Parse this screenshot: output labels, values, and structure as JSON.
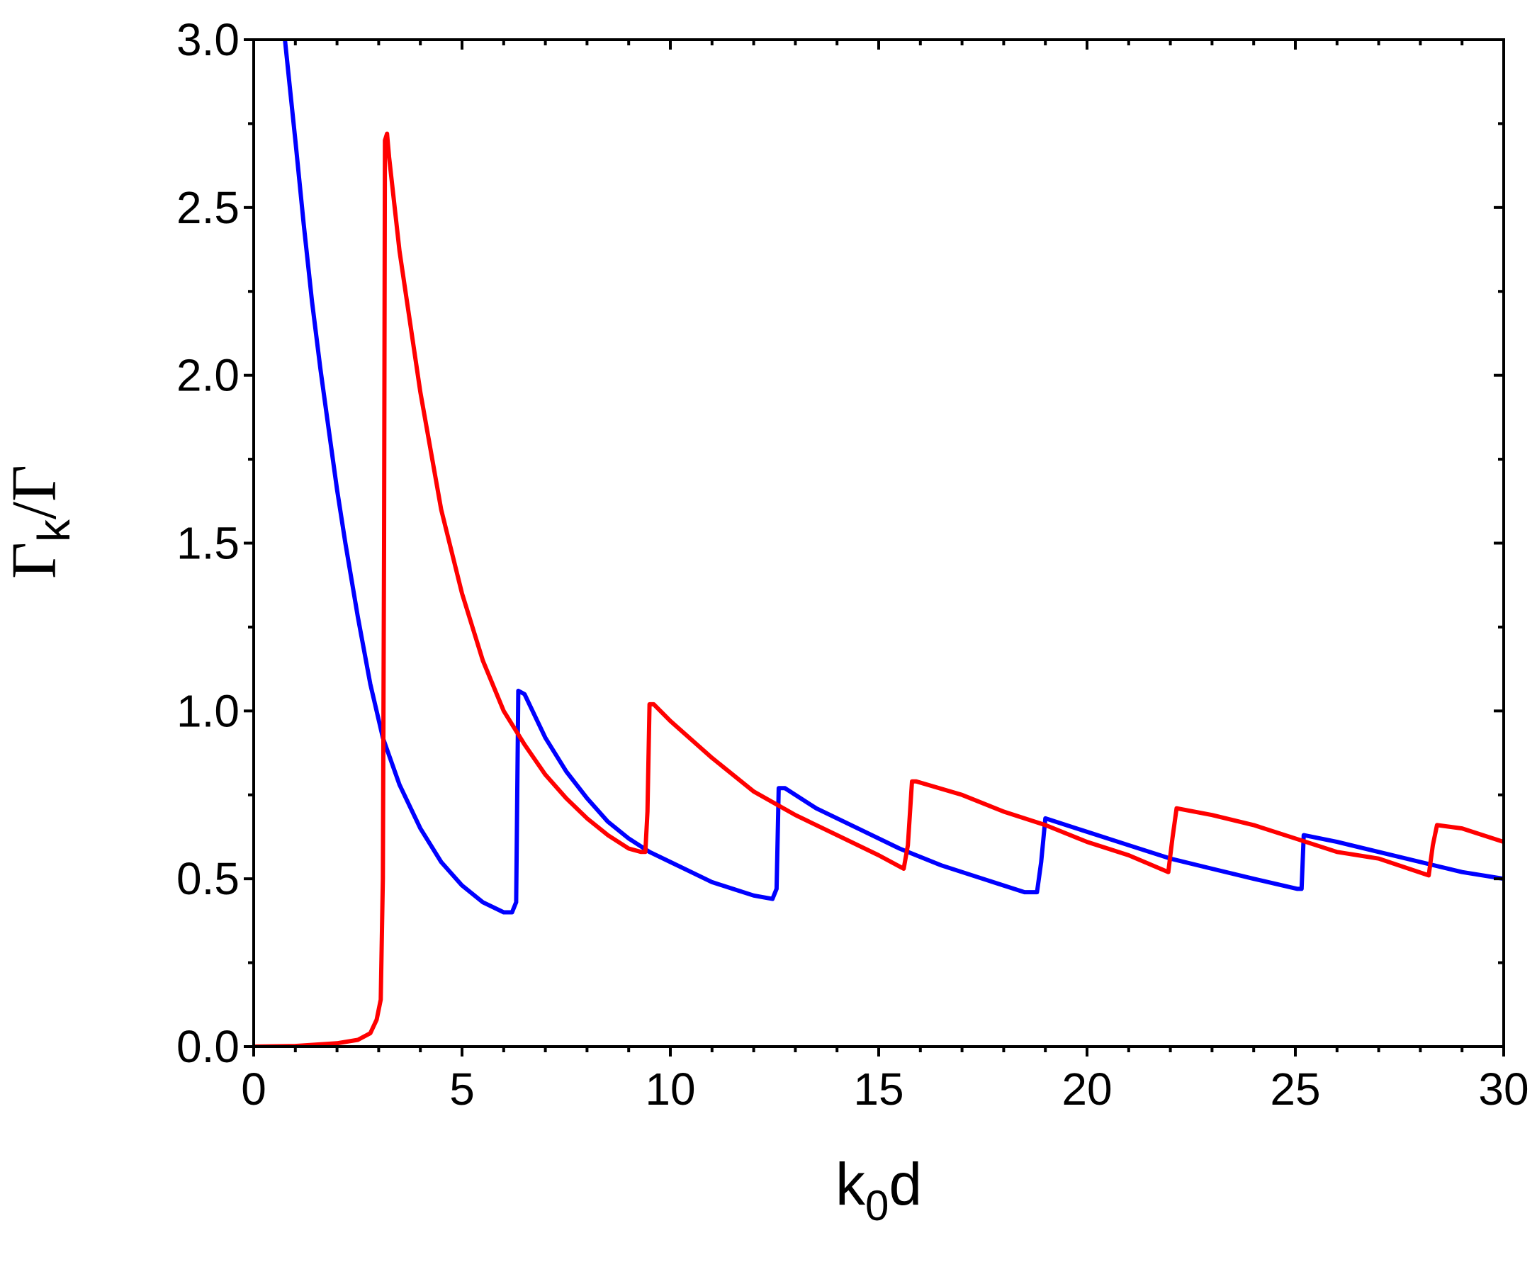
{
  "chart_data": {
    "type": "line",
    "xlabel": {
      "base": "k",
      "sub": "0",
      "rest": "d"
    },
    "ylabel": {
      "gamma": "Γ",
      "sub": "k",
      "rest": "/Γ"
    },
    "xlim": [
      0,
      30
    ],
    "ylim": [
      0,
      3.0
    ],
    "xticks": [
      "0",
      "5",
      "10",
      "15",
      "20",
      "25",
      "30"
    ],
    "yticks": [
      "0.0",
      "0.5",
      "1.0",
      "1.5",
      "2.0",
      "2.5",
      "3.0"
    ],
    "grid": false,
    "legend": "none",
    "series": [
      {
        "color": "#0000ff",
        "x": [
          0.75,
          0.9,
          1.0,
          1.2,
          1.4,
          1.6,
          1.8,
          2.0,
          2.2,
          2.5,
          2.8,
          3.1,
          3.5,
          4.0,
          4.5,
          5.0,
          5.5,
          6.0,
          6.2,
          6.3,
          6.35,
          6.5,
          7.0,
          7.5,
          8.0,
          8.5,
          9.0,
          9.5,
          10.0,
          10.5,
          11.0,
          11.5,
          12.0,
          12.45,
          12.55,
          12.6,
          12.75,
          13.5,
          14.5,
          15.5,
          16.5,
          17.5,
          18.5,
          18.8,
          18.9,
          19.0,
          20.0,
          21.0,
          22.0,
          23.0,
          24.0,
          25.05,
          25.15,
          25.2,
          26.0,
          27.0,
          28.0,
          29.0,
          30.0
        ],
        "y": [
          3.0,
          2.82,
          2.7,
          2.45,
          2.22,
          2.02,
          1.84,
          1.66,
          1.5,
          1.28,
          1.08,
          0.92,
          0.78,
          0.65,
          0.55,
          0.48,
          0.43,
          0.4,
          0.4,
          0.43,
          1.06,
          1.05,
          0.92,
          0.82,
          0.74,
          0.67,
          0.62,
          0.58,
          0.55,
          0.52,
          0.49,
          0.47,
          0.45,
          0.44,
          0.47,
          0.77,
          0.77,
          0.71,
          0.65,
          0.59,
          0.54,
          0.5,
          0.46,
          0.46,
          0.55,
          0.68,
          0.64,
          0.6,
          0.56,
          0.53,
          0.5,
          0.47,
          0.47,
          0.63,
          0.61,
          0.58,
          0.55,
          0.52,
          0.5
        ]
      },
      {
        "color": "#ff0000",
        "x": [
          0.0,
          1.0,
          2.0,
          2.5,
          2.8,
          2.95,
          3.05,
          3.1,
          3.13,
          3.15,
          3.2,
          3.25,
          3.5,
          4.0,
          4.5,
          5.0,
          5.5,
          6.0,
          6.5,
          7.0,
          7.5,
          8.0,
          8.5,
          9.0,
          9.3,
          9.4,
          9.45,
          9.5,
          9.6,
          10.0,
          11.0,
          12.0,
          13.0,
          14.0,
          15.0,
          15.6,
          15.7,
          15.8,
          15.9,
          17.0,
          18.0,
          19.0,
          20.0,
          21.0,
          21.95,
          22.05,
          22.15,
          23.0,
          24.0,
          25.0,
          26.0,
          27.0,
          28.2,
          28.3,
          28.4,
          29.0,
          30.0
        ],
        "y": [
          0.0,
          0.002,
          0.01,
          0.02,
          0.04,
          0.08,
          0.14,
          0.5,
          1.5,
          2.7,
          2.72,
          2.65,
          2.37,
          1.95,
          1.6,
          1.35,
          1.15,
          1.0,
          0.9,
          0.81,
          0.74,
          0.68,
          0.63,
          0.59,
          0.58,
          0.58,
          0.7,
          1.02,
          1.02,
          0.97,
          0.86,
          0.76,
          0.69,
          0.63,
          0.57,
          0.53,
          0.6,
          0.79,
          0.79,
          0.75,
          0.7,
          0.66,
          0.61,
          0.57,
          0.52,
          0.62,
          0.71,
          0.69,
          0.66,
          0.62,
          0.58,
          0.56,
          0.51,
          0.6,
          0.66,
          0.65,
          0.61
        ]
      }
    ]
  }
}
